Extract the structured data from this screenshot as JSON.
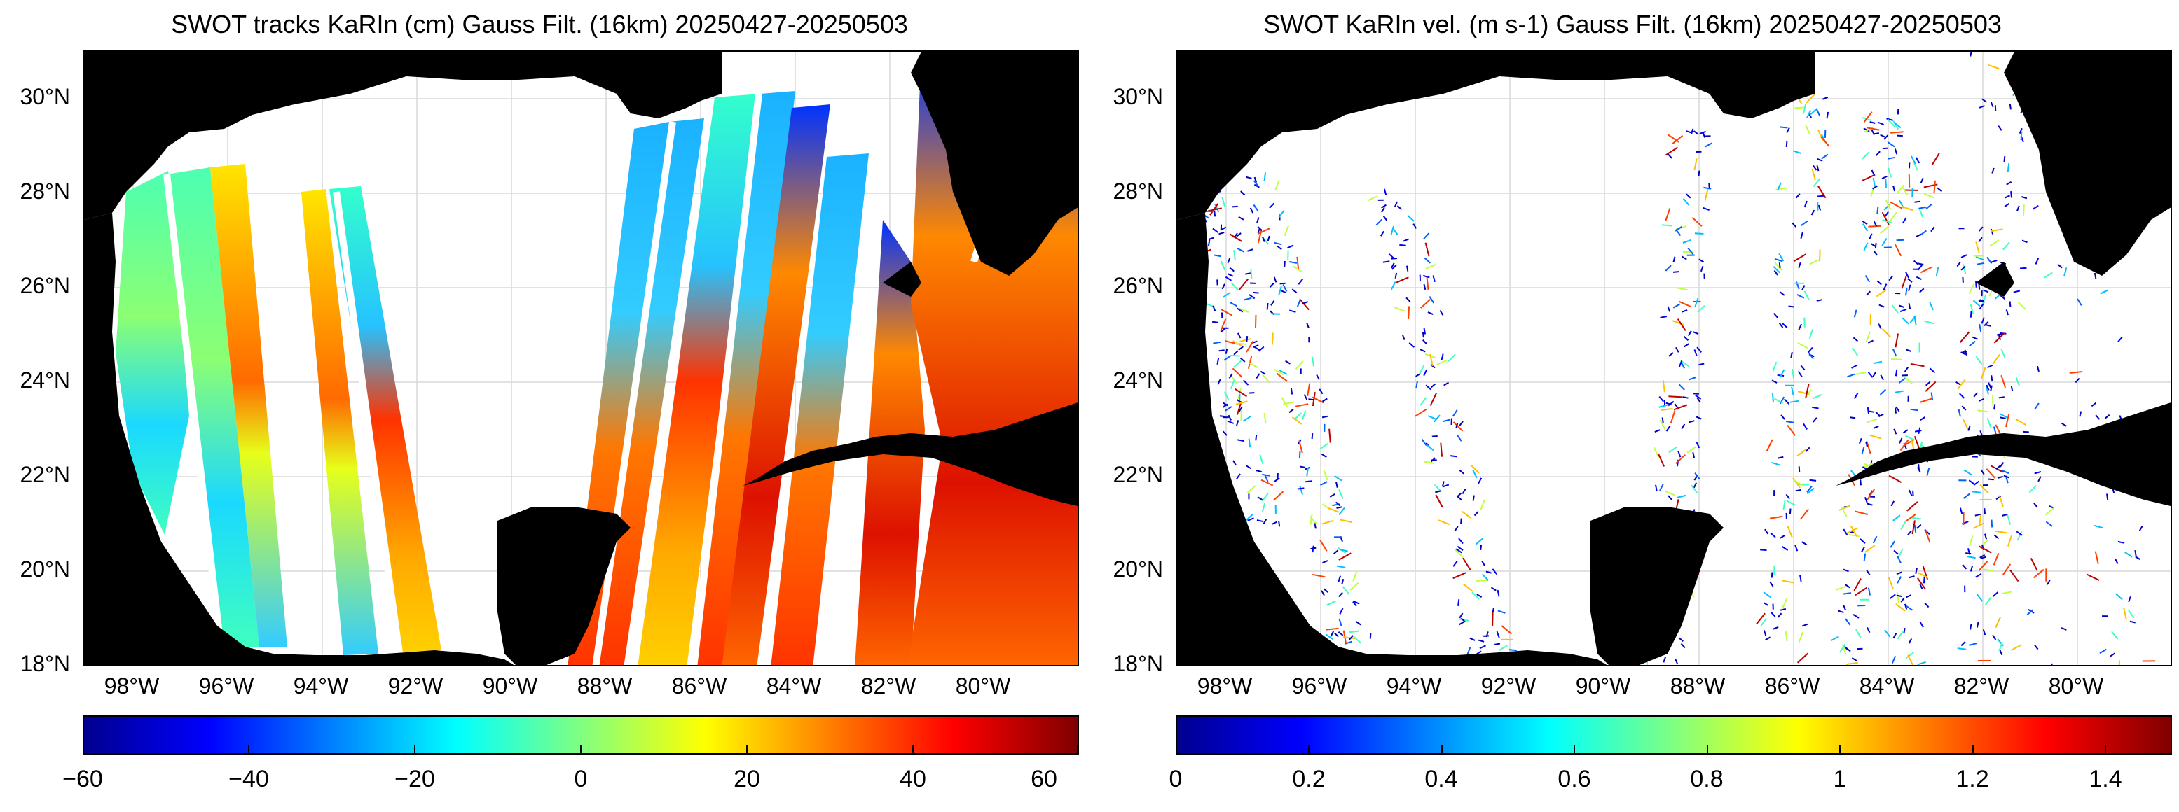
{
  "panels": {
    "left": {
      "title": "SWOT tracks KaRIn (cm) Gauss Filt. (16km) 20250427-20250503",
      "y_labels": [
        "30°N",
        "28°N",
        "26°N",
        "24°N",
        "22°N",
        "20°N",
        "18°N"
      ],
      "x_labels": [
        "98°W",
        "96°W",
        "94°W",
        "92°W",
        "90°W",
        "88°W",
        "86°W",
        "84°W",
        "82°W",
        "80°W"
      ],
      "colorbar": {
        "ticks": [
          "−60",
          "−40",
          "−20",
          "0",
          "20",
          "40",
          "60"
        ],
        "range": [
          -60,
          60
        ],
        "colormap": "jet"
      }
    },
    "right": {
      "title": "SWOT KaRIn vel. (m s-1) Gauss Filt. (16km) 20250427-20250503",
      "y_labels": [
        "30°N",
        "28°N",
        "26°N",
        "24°N",
        "22°N",
        "20°N",
        "18°N"
      ],
      "x_labels": [
        "98°W",
        "96°W",
        "94°W",
        "92°W",
        "90°W",
        "88°W",
        "86°W",
        "84°W",
        "82°W",
        "80°W"
      ],
      "colorbar": {
        "ticks": [
          "0",
          "0.2",
          "0.4",
          "0.6",
          "0.8",
          "1",
          "1.2",
          "1.4"
        ],
        "range": [
          0,
          1.5
        ],
        "colormap": "jet"
      }
    }
  },
  "colors": {
    "land": "#000000",
    "ocean": "#ffffff",
    "grid": "#d9d9d9"
  }
}
